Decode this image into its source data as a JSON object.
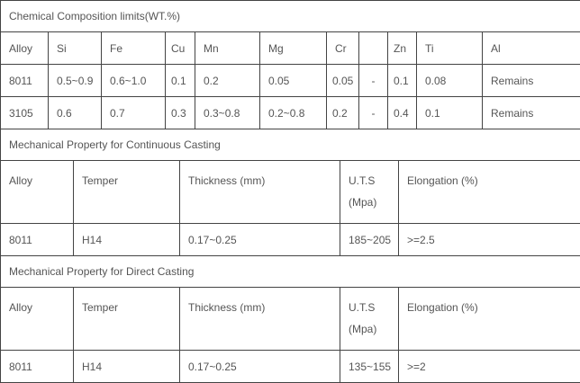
{
  "composition": {
    "title": "Chemical Composition limits(WT.%)",
    "headers": [
      "Alloy",
      "Si",
      "Fe",
      "Cu",
      "Mn",
      "Mg",
      "Cr",
      "",
      "Zn",
      "Ti",
      "Al"
    ],
    "rows": [
      [
        "8011",
        "0.5~0.9",
        "0.6~1.0",
        "0.1",
        "0.2",
        "0.05",
        "0.05",
        "-",
        "0.1",
        "0.08",
        "Remains"
      ],
      [
        "3105",
        "0.6",
        "0.7",
        "0.3",
        "0.3~0.8",
        "0.2~0.8",
        "0.2",
        "-",
        "0.4",
        "0.1",
        "Remains"
      ]
    ]
  },
  "continuous": {
    "title": "Mechanical Property for Continuous Casting",
    "headers": [
      "Alloy",
      "Temper",
      "Thickness (mm)",
      "U.T.S",
      "(Mpa)",
      "Elongation (%)"
    ],
    "rows": [
      [
        "8011",
        "H14",
        "0.17~0.25",
        "185~205",
        ">=2.5"
      ]
    ]
  },
  "direct": {
    "title": "Mechanical Property for Direct Casting",
    "headers": [
      "Alloy",
      "Temper",
      "Thickness (mm)",
      "U.T.S",
      "(Mpa)",
      "Elongation (%)"
    ],
    "rows": [
      [
        "8011",
        "H14",
        "0.17~0.25",
        "135~155",
        ">=2"
      ]
    ]
  }
}
